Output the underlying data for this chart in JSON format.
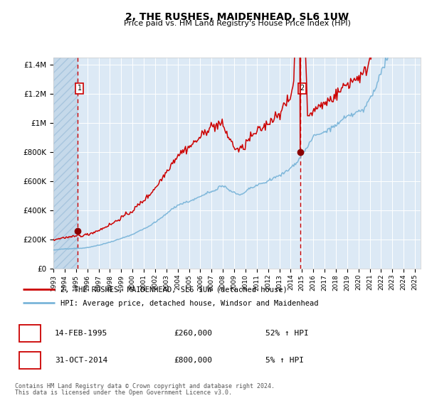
{
  "title": "2, THE RUSHES, MAIDENHEAD, SL6 1UW",
  "subtitle": "Price paid vs. HM Land Registry's House Price Index (HPI)",
  "legend_line1": "2, THE RUSHES, MAIDENHEAD, SL6 1UW (detached house)",
  "legend_line2": "HPI: Average price, detached house, Windsor and Maidenhead",
  "annotation1_date": "14-FEB-1995",
  "annotation1_price": "£260,000",
  "annotation1_hpi": "52% ↑ HPI",
  "annotation2_date": "31-OCT-2014",
  "annotation2_price": "£800,000",
  "annotation2_hpi": "5% ↑ HPI",
  "footnote1": "Contains HM Land Registry data © Crown copyright and database right 2024.",
  "footnote2": "This data is licensed under the Open Government Licence v3.0.",
  "ylim": [
    0,
    1450000
  ],
  "xmin": 1993,
  "xmax": 2025.5,
  "sale1_year": 1995.12,
  "sale1_price": 260000,
  "sale2_year": 2014.83,
  "sale2_price": 800000,
  "hpi_line_color": "#7ab5d9",
  "price_line_color": "#cc0000",
  "sale_marker_color": "#8b0000",
  "dashed_line_color": "#cc0000",
  "bg_color": "#dce9f5",
  "hatch_color": "#c5d9ea",
  "grid_color": "#ffffff",
  "label_box_color": "#cc0000"
}
